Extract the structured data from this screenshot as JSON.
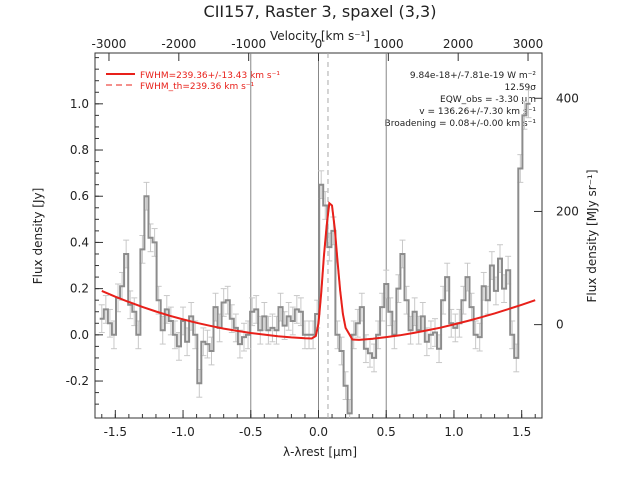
{
  "chart_data": {
    "type": "line",
    "title": "CII157, Raster 3, spaxel (3,3)",
    "xlabel": "λ-λrest [μm]",
    "ylabel": "Flux density [Jy]",
    "top_axis_label": "Velocity [km s⁻¹]",
    "right_axis_label": "Flux density [MJy sr⁻¹]",
    "xlim": [
      -1.65,
      1.65
    ],
    "ylim": [
      -0.36,
      1.22
    ],
    "top_axis_range": [
      -3200,
      3200
    ],
    "right_axis_range": [
      -165,
      480
    ],
    "x_ticks": [
      "-1.5",
      "-1.0",
      "-0.5",
      "0.0",
      "0.5",
      "1.0",
      "1.5"
    ],
    "y_ticks": [
      "-0.2",
      "0.0",
      "0.2",
      "0.4",
      "0.6",
      "0.8",
      "1.0"
    ],
    "top_ticks": [
      "-3000",
      "-2000",
      "-1000",
      "0",
      "1000",
      "2000",
      "3000"
    ],
    "right_ticks": [
      "0",
      "200",
      "400"
    ],
    "vertical_lines": [
      -0.5,
      0.0,
      0.5
    ],
    "dashed_line": 0.07,
    "legend": [
      {
        "label": "FWHM=239.36+/-13.43 km s⁻¹",
        "style": "solid"
      },
      {
        "label": "FWHM_th=239.36 km s⁻¹",
        "style": "dashed"
      }
    ],
    "annotations": [
      "9.84e-18+/-7.81e-19 W m⁻²",
      "12.59σ",
      "EQW_obs = -3.30 μm",
      "v = 136.26+/-7.30 km s⁻¹",
      "Broadening = 0.08+/-0.00 km s⁻¹"
    ],
    "series": [
      {
        "style": "step",
        "color": "#8c8c8c",
        "x": [
          -1.6,
          -1.57,
          -1.54,
          -1.51,
          -1.48,
          -1.45,
          -1.42,
          -1.39,
          -1.36,
          -1.33,
          -1.3,
          -1.27,
          -1.24,
          -1.21,
          -1.18,
          -1.15,
          -1.12,
          -1.09,
          -1.06,
          -1.03,
          -1.0,
          -0.97,
          -0.94,
          -0.91,
          -0.88,
          -0.85,
          -0.82,
          -0.79,
          -0.76,
          -0.73,
          -0.7,
          -0.67,
          -0.64,
          -0.61,
          -0.58,
          -0.55,
          -0.52,
          -0.49,
          -0.46,
          -0.43,
          -0.4,
          -0.37,
          -0.34,
          -0.31,
          -0.28,
          -0.25,
          -0.22,
          -0.19,
          -0.16,
          -0.13,
          -0.1,
          -0.07,
          -0.04,
          -0.01,
          0.02,
          0.05,
          0.08,
          0.11,
          0.14,
          0.17,
          0.2,
          0.23,
          0.26,
          0.29,
          0.32,
          0.35,
          0.38,
          0.41,
          0.44,
          0.47,
          0.5,
          0.53,
          0.56,
          0.59,
          0.62,
          0.65,
          0.68,
          0.71,
          0.74,
          0.77,
          0.8,
          0.83,
          0.86,
          0.89,
          0.92,
          0.95,
          0.98,
          1.01,
          1.04,
          1.07,
          1.1,
          1.13,
          1.16,
          1.19,
          1.22,
          1.25,
          1.28,
          1.31,
          1.34,
          1.37,
          1.4,
          1.43,
          1.46,
          1.49,
          1.52,
          1.55
        ],
        "y": [
          0.07,
          0.11,
          0.05,
          0.0,
          0.16,
          0.21,
          0.35,
          0.13,
          0.1,
          0.0,
          0.37,
          0.6,
          0.42,
          0.4,
          0.15,
          0.02,
          0.11,
          0.06,
          0.0,
          -0.05,
          0.06,
          -0.03,
          0.08,
          0.0,
          -0.21,
          -0.03,
          -0.04,
          -0.07,
          0.12,
          0.03,
          0.14,
          0.15,
          0.07,
          0.03,
          -0.04,
          -0.01,
          0.0,
          0.1,
          0.11,
          0.02,
          0.08,
          0.02,
          0.03,
          0.02,
          0.12,
          0.04,
          0.08,
          0.06,
          0.11,
          0.1,
          0.0,
          0.0,
          0.0,
          0.09,
          0.65,
          0.56,
          0.38,
          0.45,
          0.0,
          -0.07,
          -0.22,
          -0.34,
          0.0,
          0.05,
          0.12,
          -0.06,
          -0.08,
          -0.1,
          0.0,
          0.12,
          0.22,
          0.1,
          0.0,
          0.2,
          0.35,
          0.15,
          0.02,
          0.1,
          0.02,
          0.08,
          -0.03,
          0.0,
          0.01,
          -0.06,
          0.15,
          0.25,
          0.05,
          0.03,
          0.05,
          0.15,
          0.25,
          0.12,
          0.0,
          -0.01,
          0.21,
          0.15,
          0.3,
          0.19,
          0.33,
          0.2,
          0.28,
          0.0,
          -0.1,
          0.72,
          0.95,
          1.0
        ],
        "err": [
          0.06,
          0.06,
          0.06,
          0.06,
          0.06,
          0.06,
          0.06,
          0.06,
          0.06,
          0.06,
          0.06,
          0.06,
          0.06,
          0.06,
          0.06,
          0.06,
          0.06,
          0.06,
          0.06,
          0.06,
          0.06,
          0.06,
          0.06,
          0.06,
          0.06,
          0.06,
          0.06,
          0.06,
          0.06,
          0.06,
          0.06,
          0.06,
          0.06,
          0.06,
          0.06,
          0.06,
          0.06,
          0.06,
          0.06,
          0.06,
          0.06,
          0.06,
          0.06,
          0.06,
          0.06,
          0.06,
          0.06,
          0.06,
          0.06,
          0.06,
          0.06,
          0.06,
          0.06,
          0.06,
          0.06,
          0.06,
          0.06,
          0.06,
          0.06,
          0.06,
          0.06,
          0.06,
          0.06,
          0.06,
          0.06,
          0.06,
          0.06,
          0.06,
          0.06,
          0.06,
          0.06,
          0.06,
          0.06,
          0.06,
          0.06,
          0.06,
          0.06,
          0.06,
          0.06,
          0.06,
          0.06,
          0.06,
          0.06,
          0.06,
          0.06,
          0.06,
          0.06,
          0.06,
          0.06,
          0.06,
          0.06,
          0.06,
          0.06,
          0.06,
          0.06,
          0.06,
          0.06,
          0.06,
          0.06,
          0.06,
          0.06,
          0.06,
          0.06,
          0.06,
          0.06,
          0.06
        ]
      },
      {
        "style": "solid",
        "color": "#e8201a",
        "x": [
          -1.6,
          -1.5,
          -1.4,
          -1.3,
          -1.2,
          -1.1,
          -1.0,
          -0.9,
          -0.8,
          -0.7,
          -0.6,
          -0.5,
          -0.4,
          -0.3,
          -0.2,
          -0.1,
          -0.05,
          -0.02,
          0.0,
          0.02,
          0.04,
          0.06,
          0.08,
          0.1,
          0.12,
          0.14,
          0.16,
          0.18,
          0.2,
          0.25,
          0.3,
          0.4,
          0.5,
          0.6,
          0.7,
          0.8,
          0.9,
          1.0,
          1.1,
          1.2,
          1.3,
          1.4,
          1.5,
          1.6
        ],
        "y": [
          0.19,
          0.165,
          0.142,
          0.121,
          0.101,
          0.083,
          0.067,
          0.052,
          0.039,
          0.027,
          0.017,
          0.008,
          0.001,
          -0.006,
          -0.011,
          -0.015,
          -0.016,
          -0.005,
          0.05,
          0.18,
          0.34,
          0.47,
          0.57,
          0.56,
          0.46,
          0.32,
          0.19,
          0.09,
          0.03,
          -0.02,
          -0.022,
          -0.017,
          -0.01,
          -0.002,
          0.008,
          0.019,
          0.031,
          0.045,
          0.06,
          0.076,
          0.093,
          0.111,
          0.13,
          0.15
        ]
      },
      {
        "style": "dashed",
        "color": "#e8201a",
        "x": [
          -0.02,
          0.0,
          0.02,
          0.04,
          0.06,
          0.08,
          0.1,
          0.12,
          0.14,
          0.16,
          0.18,
          0.2
        ],
        "y": [
          -0.005,
          0.05,
          0.18,
          0.34,
          0.47,
          0.57,
          0.56,
          0.46,
          0.32,
          0.19,
          0.09,
          0.03
        ]
      }
    ]
  }
}
